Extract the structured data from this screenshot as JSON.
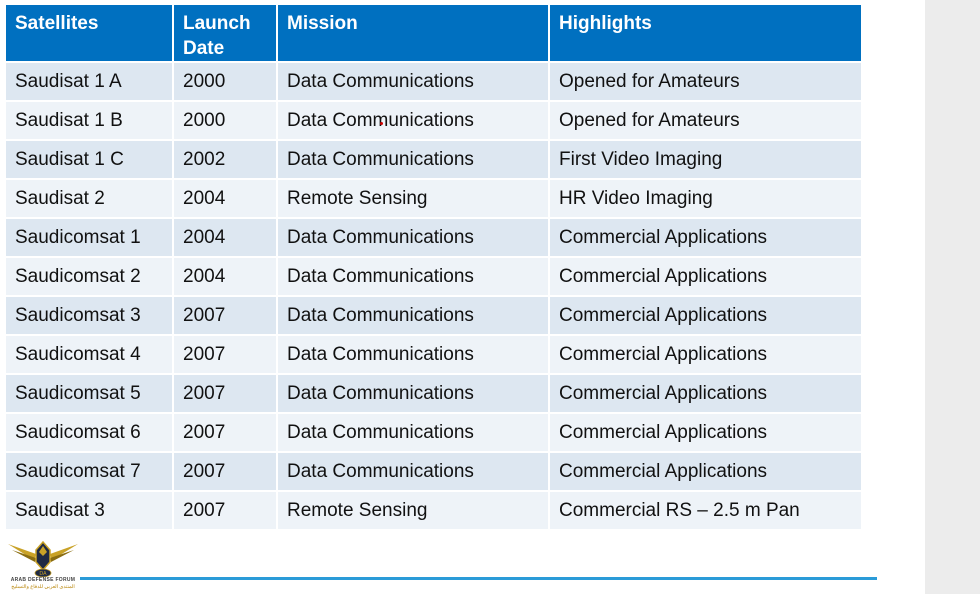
{
  "table": {
    "headers": [
      {
        "line1": "Satellites",
        "line2": ""
      },
      {
        "line1": "Launch",
        "line2": "Date"
      },
      {
        "line1": "Mission",
        "line2": ""
      },
      {
        "line1": "Highlights",
        "line2": ""
      }
    ],
    "rows": [
      [
        "Saudisat 1 A",
        "2000",
        "Data Communications",
        "Opened for Amateurs"
      ],
      [
        "Saudisat 1 B",
        "2000",
        "Data Communications",
        "Opened for Amateurs"
      ],
      [
        "Saudisat 1 C",
        "2002",
        "Data Communications",
        "First Video Imaging"
      ],
      [
        "Saudisat 2",
        "2004",
        "Remote Sensing",
        "HR Video Imaging"
      ],
      [
        "Saudicomsat 1",
        "2004",
        "Data Communications",
        "Commercial Applications"
      ],
      [
        "Saudicomsat 2",
        "2004",
        "Data Communications",
        "Commercial Applications"
      ],
      [
        "Saudicomsat 3",
        "2007",
        "Data Communications",
        "Commercial Applications"
      ],
      [
        "Saudicomsat 4",
        "2007",
        "Data Communications",
        "Commercial Applications"
      ],
      [
        "Saudicomsat 5",
        "2007",
        "Data Communications",
        "Commercial Applications"
      ],
      [
        "Saudicomsat 6",
        "2007",
        "Data Communications",
        "Commercial Applications"
      ],
      [
        "Saudicomsat 7",
        "2007",
        "Data Communications",
        "Commercial Applications"
      ],
      [
        "Saudisat 3",
        "2007",
        "Remote Sensing",
        "Commercial RS – 2.5 m Pan"
      ]
    ]
  },
  "logo": {
    "badge": "DA",
    "name": "ARAB DEFENSE FORUM",
    "arabic": "المنتدى العربي للدفاع والتسليح"
  },
  "colors": {
    "header_bg": "#0070c0",
    "row_odd": "#dde7f1",
    "row_even": "#eef3f8",
    "rule": "#2a9bd8"
  }
}
